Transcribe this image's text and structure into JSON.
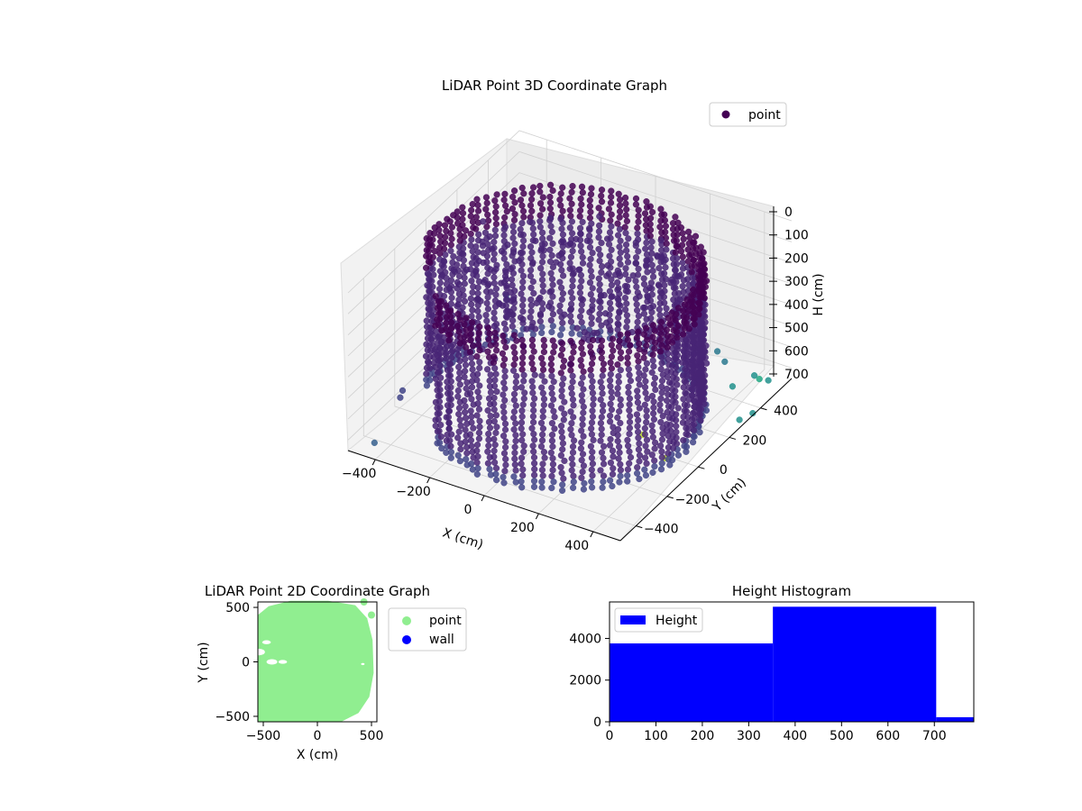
{
  "chart_data": [
    {
      "type": "scatter",
      "projection": "3d",
      "title": "LiDAR Point 3D Coordinate Graph",
      "xlabel": "X (cm)",
      "ylabel": "Y (cm)",
      "zlabel": "H (cm)",
      "xlim": [
        -500,
        500
      ],
      "ylim": [
        -500,
        600
      ],
      "zlim": [
        0,
        750
      ],
      "z_axis_inverted": true,
      "x_ticks": [
        "−400",
        "−200",
        "0",
        "200",
        "400"
      ],
      "y_ticks": [
        "−400",
        "−200",
        "0",
        "200",
        "400"
      ],
      "z_ticks": [
        "0",
        "100",
        "200",
        "300",
        "400",
        "500",
        "600",
        "700"
      ],
      "colormap": "viridis",
      "grid": true,
      "legend": {
        "position": "top-right",
        "entries": [
          "point"
        ]
      },
      "series": [
        {
          "name": "point",
          "color": "#440154",
          "description": "ring-shaped wall scan, radius about 450 cm, height 0 to 700 cm"
        }
      ]
    },
    {
      "type": "scatter",
      "title": "LiDAR Point 2D Coordinate Graph",
      "xlabel": "X (cm)",
      "ylabel": "Y (cm)",
      "xlim": [
        -550,
        550
      ],
      "ylim": [
        -550,
        550
      ],
      "x_ticks": [
        "−500",
        "0",
        "500"
      ],
      "y_ticks": [
        "500",
        "0",
        "−500"
      ],
      "legend": {
        "position": "outside-right",
        "entries": [
          "point",
          "wall"
        ]
      },
      "series": [
        {
          "name": "point",
          "color": "#90ee90"
        },
        {
          "name": "wall",
          "color": "#0000ff"
        }
      ]
    },
    {
      "type": "bar",
      "title": "Height Histogram",
      "xlim": [
        0,
        785
      ],
      "ylim": [
        0,
        5750
      ],
      "x_ticks": [
        "0",
        "100",
        "200",
        "300",
        "400",
        "500",
        "600",
        "700"
      ],
      "y_ticks": [
        "0",
        "2000",
        "4000"
      ],
      "bin_edges": [
        0,
        352,
        704,
        785
      ],
      "values": [
        3760,
        5520,
        220
      ],
      "color": "#0000ff",
      "legend": {
        "position": "top-left",
        "entries": [
          "Height"
        ]
      },
      "series": [
        {
          "name": "Height",
          "values": [
            3760,
            5520,
            220
          ]
        }
      ]
    }
  ]
}
